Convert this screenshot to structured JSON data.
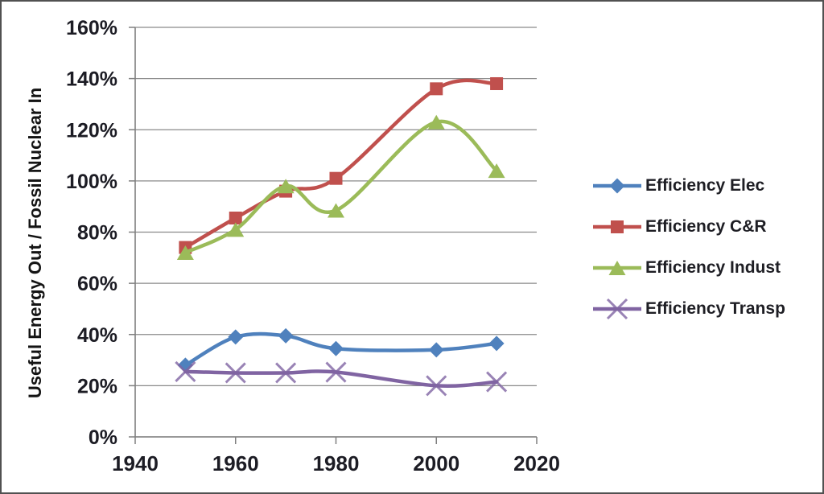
{
  "chart_data": {
    "type": "line",
    "title": "",
    "xlabel": "",
    "ylabel": "Useful Energy Out / Fossil Nuclear In",
    "xlim": [
      1940,
      2020
    ],
    "ylim": [
      0,
      160
    ],
    "grid": true,
    "smooth": true,
    "legend_position": "right",
    "x": [
      1950,
      1960,
      1970,
      1980,
      2000,
      2012
    ],
    "x_tick_values": [
      1940,
      1960,
      1980,
      2000,
      2020
    ],
    "x_tick_labels": [
      "1940",
      "1960",
      "1980",
      "2000",
      "2020"
    ],
    "y_tick_values": [
      0,
      20,
      40,
      60,
      80,
      100,
      120,
      140,
      160
    ],
    "y_tick_labels": [
      "0%",
      "20%",
      "40%",
      "60%",
      "80%",
      "100%",
      "120%",
      "140%",
      "160%"
    ],
    "series": [
      {
        "name": "Efficiency Elec",
        "color": "#4F81BD",
        "marker": "diamond",
        "values": [
          28,
          39,
          39.5,
          34.5,
          34,
          36.5
        ]
      },
      {
        "name": "Efficiency C&R",
        "color": "#C0504D",
        "marker": "square",
        "values": [
          74,
          85.5,
          96,
          101,
          136,
          138
        ]
      },
      {
        "name": "Efficiency Indust",
        "color": "#9BBB59",
        "marker": "triangle",
        "values": [
          72,
          81,
          98,
          88.5,
          123,
          104
        ]
      },
      {
        "name": "Efficiency Transp",
        "color": "#8064A2",
        "marker": "x",
        "values": [
          25.5,
          25,
          25,
          25.3,
          20,
          21.5
        ]
      }
    ],
    "colors": {
      "grid": "#8a8a8a",
      "axis": "#7f7f7f",
      "tick_text": "#1c1c24",
      "border": "#515151",
      "background": "#ffffff"
    }
  }
}
